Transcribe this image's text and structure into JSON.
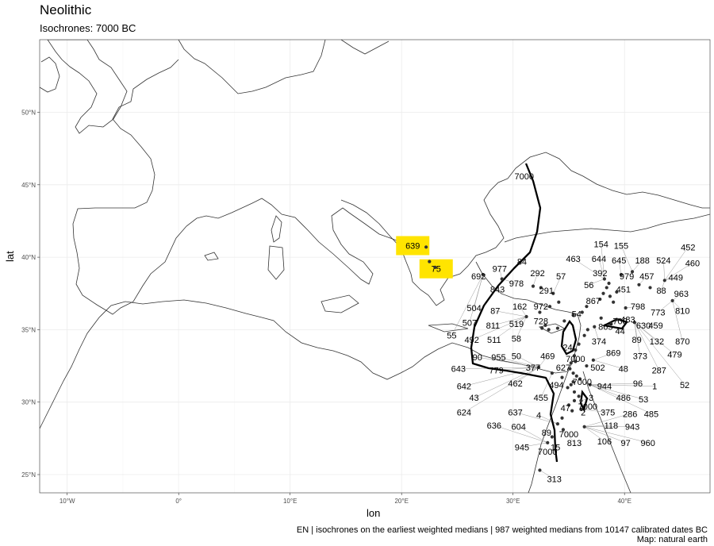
{
  "title": "Neolithic",
  "subtitle": "Isochrones: 7000 BC",
  "axes": {
    "xlabel": "lon",
    "ylabel": "lat",
    "x_ticks": [
      "10°W",
      "0°",
      "10°E",
      "20°E",
      "30°E",
      "40°E"
    ],
    "y_ticks": [
      "25°N",
      "30°N",
      "35°N",
      "40°N",
      "45°N",
      "50°N"
    ]
  },
  "caption": {
    "line1": "EN | isochrones on the earliest weighted medians | 987 weighted medians from 10147 calibrated dates BC",
    "line2": "Map: natural earth"
  },
  "colors": {
    "background": "#ffffff",
    "grid": "#ebebeb",
    "coast": "#333333",
    "isochrone": "#000000",
    "highlight": "#ffe400",
    "point": "#333333"
  },
  "chart_data": {
    "type": "scatter",
    "xlim": [
      -12,
      48
    ],
    "ylim": [
      23.5,
      55
    ],
    "isochrone_label": "7000",
    "isochrone_labels": [
      {
        "text": "7000",
        "lon": 31.0,
        "lat": 45.6
      },
      {
        "text": "7000",
        "lon": 35.6,
        "lat": 33.0
      },
      {
        "text": "7000",
        "lon": 36.2,
        "lat": 31.4
      },
      {
        "text": "7000",
        "lon": 36.7,
        "lat": 29.7
      },
      {
        "text": "7000",
        "lon": 35.0,
        "lat": 27.8
      },
      {
        "text": "7000",
        "lon": 33.1,
        "lat": 26.6
      },
      {
        "text": "700",
        "lon": 39.6,
        "lat": 35.6
      }
    ],
    "highlighted_labels": [
      {
        "text": "639",
        "lon": 21.0,
        "lat": 40.8
      },
      {
        "text": "75",
        "lon": 23.1,
        "lat": 39.2
      }
    ],
    "site_labels": [
      {
        "text": "84",
        "lon": 30.8,
        "lat": 39.7
      },
      {
        "text": "977",
        "lon": 28.8,
        "lat": 39.2
      },
      {
        "text": "692",
        "lon": 26.9,
        "lat": 38.7
      },
      {
        "text": "292",
        "lon": 32.2,
        "lat": 38.9
      },
      {
        "text": "57",
        "lon": 34.3,
        "lat": 38.7
      },
      {
        "text": "463",
        "lon": 35.4,
        "lat": 39.9
      },
      {
        "text": "154",
        "lon": 37.9,
        "lat": 40.9
      },
      {
        "text": "155",
        "lon": 39.7,
        "lat": 40.8
      },
      {
        "text": "644",
        "lon": 37.7,
        "lat": 39.9
      },
      {
        "text": "645",
        "lon": 39.5,
        "lat": 39.8
      },
      {
        "text": "188",
        "lon": 41.6,
        "lat": 39.8
      },
      {
        "text": "524",
        "lon": 43.5,
        "lat": 39.8
      },
      {
        "text": "452",
        "lon": 45.7,
        "lat": 40.7
      },
      {
        "text": "460",
        "lon": 46.1,
        "lat": 39.6
      },
      {
        "text": "392",
        "lon": 37.8,
        "lat": 38.9
      },
      {
        "text": "979",
        "lon": 40.2,
        "lat": 38.7
      },
      {
        "text": "457",
        "lon": 42.0,
        "lat": 38.7
      },
      {
        "text": "449",
        "lon": 44.6,
        "lat": 38.6
      },
      {
        "text": "978",
        "lon": 30.3,
        "lat": 38.2
      },
      {
        "text": "56",
        "lon": 36.8,
        "lat": 38.1
      },
      {
        "text": "451",
        "lon": 39.9,
        "lat": 37.8
      },
      {
        "text": "88",
        "lon": 43.3,
        "lat": 37.7
      },
      {
        "text": "963",
        "lon": 45.1,
        "lat": 37.5
      },
      {
        "text": "843",
        "lon": 28.6,
        "lat": 37.8
      },
      {
        "text": "291",
        "lon": 33.0,
        "lat": 37.7
      },
      {
        "text": "867",
        "lon": 37.2,
        "lat": 37.0
      },
      {
        "text": "798",
        "lon": 41.2,
        "lat": 36.6
      },
      {
        "text": "773",
        "lon": 43.0,
        "lat": 36.2
      },
      {
        "text": "810",
        "lon": 45.2,
        "lat": 36.3
      },
      {
        "text": "504",
        "lon": 26.5,
        "lat": 36.5
      },
      {
        "text": "87",
        "lon": 28.4,
        "lat": 36.3
      },
      {
        "text": "162",
        "lon": 30.6,
        "lat": 36.6
      },
      {
        "text": "972",
        "lon": 32.5,
        "lat": 36.6
      },
      {
        "text": "54",
        "lon": 35.7,
        "lat": 36.1
      },
      {
        "text": "483",
        "lon": 40.3,
        "lat": 35.7
      },
      {
        "text": "459",
        "lon": 42.8,
        "lat": 35.3
      },
      {
        "text": "507",
        "lon": 26.1,
        "lat": 35.5
      },
      {
        "text": "811",
        "lon": 28.2,
        "lat": 35.3
      },
      {
        "text": "519",
        "lon": 30.3,
        "lat": 35.4
      },
      {
        "text": "728",
        "lon": 32.5,
        "lat": 35.6
      },
      {
        "text": "865",
        "lon": 38.3,
        "lat": 35.2
      },
      {
        "text": "44",
        "lon": 39.6,
        "lat": 34.9
      },
      {
        "text": "630",
        "lon": 41.7,
        "lat": 35.3
      },
      {
        "text": "55",
        "lon": 24.5,
        "lat": 34.6
      },
      {
        "text": "492",
        "lon": 26.3,
        "lat": 34.3
      },
      {
        "text": "511",
        "lon": 28.3,
        "lat": 34.3
      },
      {
        "text": "58",
        "lon": 30.3,
        "lat": 34.4
      },
      {
        "text": "24",
        "lon": 34.9,
        "lat": 33.8
      },
      {
        "text": "374",
        "lon": 37.7,
        "lat": 34.2
      },
      {
        "text": "89",
        "lon": 41.1,
        "lat": 34.3
      },
      {
        "text": "132",
        "lon": 42.9,
        "lat": 34.2
      },
      {
        "text": "870",
        "lon": 45.2,
        "lat": 34.2
      },
      {
        "text": "90",
        "lon": 26.8,
        "lat": 33.1
      },
      {
        "text": "955",
        "lon": 28.7,
        "lat": 33.1
      },
      {
        "text": "50",
        "lon": 30.3,
        "lat": 33.2
      },
      {
        "text": "469",
        "lon": 33.1,
        "lat": 33.2
      },
      {
        "text": "869",
        "lon": 39.0,
        "lat": 33.4
      },
      {
        "text": "373",
        "lon": 41.4,
        "lat": 33.2
      },
      {
        "text": "479",
        "lon": 44.5,
        "lat": 33.3
      },
      {
        "text": "643",
        "lon": 25.1,
        "lat": 32.3
      },
      {
        "text": "779",
        "lon": 28.5,
        "lat": 32.2
      },
      {
        "text": "377",
        "lon": 31.8,
        "lat": 32.4
      },
      {
        "text": "627",
        "lon": 34.5,
        "lat": 32.4
      },
      {
        "text": "502",
        "lon": 37.6,
        "lat": 32.4
      },
      {
        "text": "48",
        "lon": 39.9,
        "lat": 32.3
      },
      {
        "text": "287",
        "lon": 43.1,
        "lat": 32.2
      },
      {
        "text": "642",
        "lon": 25.6,
        "lat": 31.1
      },
      {
        "text": "462",
        "lon": 30.2,
        "lat": 31.3
      },
      {
        "text": "494",
        "lon": 33.9,
        "lat": 31.2
      },
      {
        "text": "944",
        "lon": 38.2,
        "lat": 31.1
      },
      {
        "text": "96",
        "lon": 41.2,
        "lat": 31.3
      },
      {
        "text": "1",
        "lon": 42.7,
        "lat": 31.1
      },
      {
        "text": "52",
        "lon": 45.4,
        "lat": 31.2
      },
      {
        "text": "43",
        "lon": 26.5,
        "lat": 30.3
      },
      {
        "text": "455",
        "lon": 32.5,
        "lat": 30.3
      },
      {
        "text": "3",
        "lon": 37.0,
        "lat": 30.3
      },
      {
        "text": "486",
        "lon": 39.9,
        "lat": 30.3
      },
      {
        "text": "53",
        "lon": 41.7,
        "lat": 30.2
      },
      {
        "text": "624",
        "lon": 25.6,
        "lat": 29.3
      },
      {
        "text": "637",
        "lon": 30.2,
        "lat": 29.3
      },
      {
        "text": "4",
        "lon": 32.3,
        "lat": 29.1
      },
      {
        "text": "47",
        "lon": 34.7,
        "lat": 29.6
      },
      {
        "text": "2",
        "lon": 36.3,
        "lat": 29.3
      },
      {
        "text": "375",
        "lon": 38.5,
        "lat": 29.3
      },
      {
        "text": "286",
        "lon": 40.5,
        "lat": 29.2
      },
      {
        "text": "485",
        "lon": 42.4,
        "lat": 29.2
      },
      {
        "text": "636",
        "lon": 28.3,
        "lat": 28.4
      },
      {
        "text": "604",
        "lon": 30.5,
        "lat": 28.3
      },
      {
        "text": "118",
        "lon": 38.8,
        "lat": 28.4
      },
      {
        "text": "943",
        "lon": 40.7,
        "lat": 28.3
      },
      {
        "text": "89",
        "lon": 33.0,
        "lat": 27.9
      },
      {
        "text": "106",
        "lon": 38.2,
        "lat": 27.3
      },
      {
        "text": "97",
        "lon": 40.1,
        "lat": 27.2
      },
      {
        "text": "960",
        "lon": 42.1,
        "lat": 27.2
      },
      {
        "text": "945",
        "lon": 30.8,
        "lat": 26.9
      },
      {
        "text": "813",
        "lon": 35.5,
        "lat": 27.2
      },
      {
        "text": "15",
        "lon": 33.8,
        "lat": 26.9
      },
      {
        "text": "313",
        "lon": 33.7,
        "lat": 24.7
      }
    ],
    "points": [
      {
        "lon": 22.2,
        "lat": 40.7
      },
      {
        "lon": 22.5,
        "lat": 39.7
      },
      {
        "lon": 23.0,
        "lat": 39.3
      },
      {
        "lon": 27.3,
        "lat": 38.8
      },
      {
        "lon": 29.0,
        "lat": 38.5
      },
      {
        "lon": 31.8,
        "lat": 38.0
      },
      {
        "lon": 32.5,
        "lat": 37.9
      },
      {
        "lon": 33.6,
        "lat": 37.5
      },
      {
        "lon": 34.1,
        "lat": 36.9
      },
      {
        "lon": 33.3,
        "lat": 36.6
      },
      {
        "lon": 32.4,
        "lat": 36.2
      },
      {
        "lon": 31.2,
        "lat": 35.9
      },
      {
        "lon": 32.9,
        "lat": 35.3
      },
      {
        "lon": 32.6,
        "lat": 35.1
      },
      {
        "lon": 33.2,
        "lat": 35.0
      },
      {
        "lon": 34.0,
        "lat": 35.1
      },
      {
        "lon": 34.6,
        "lat": 35.6
      },
      {
        "lon": 35.4,
        "lat": 36.0
      },
      {
        "lon": 36.2,
        "lat": 36.2
      },
      {
        "lon": 36.6,
        "lat": 36.6
      },
      {
        "lon": 37.8,
        "lat": 37.1
      },
      {
        "lon": 38.1,
        "lat": 37.5
      },
      {
        "lon": 38.4,
        "lat": 37.9
      },
      {
        "lon": 38.7,
        "lat": 37.3
      },
      {
        "lon": 39.0,
        "lat": 36.9
      },
      {
        "lon": 39.3,
        "lat": 37.6
      },
      {
        "lon": 38.6,
        "lat": 38.2
      },
      {
        "lon": 38.2,
        "lat": 38.5
      },
      {
        "lon": 39.7,
        "lat": 38.8
      },
      {
        "lon": 40.7,
        "lat": 39.0
      },
      {
        "lon": 41.3,
        "lat": 38.1
      },
      {
        "lon": 42.3,
        "lat": 37.9
      },
      {
        "lon": 43.6,
        "lat": 38.4
      },
      {
        "lon": 44.3,
        "lat": 37.0
      },
      {
        "lon": 40.1,
        "lat": 36.5
      },
      {
        "lon": 40.9,
        "lat": 35.5
      },
      {
        "lon": 39.3,
        "lat": 35.7
      },
      {
        "lon": 38.8,
        "lat": 35.4
      },
      {
        "lon": 37.9,
        "lat": 35.8
      },
      {
        "lon": 37.3,
        "lat": 35.2
      },
      {
        "lon": 36.7,
        "lat": 35.0
      },
      {
        "lon": 36.4,
        "lat": 34.6
      },
      {
        "lon": 35.9,
        "lat": 34.0
      },
      {
        "lon": 35.6,
        "lat": 33.6
      },
      {
        "lon": 35.5,
        "lat": 33.2
      },
      {
        "lon": 35.6,
        "lat": 32.8
      },
      {
        "lon": 35.2,
        "lat": 32.7
      },
      {
        "lon": 35.1,
        "lat": 32.3
      },
      {
        "lon": 35.4,
        "lat": 32.0
      },
      {
        "lon": 35.7,
        "lat": 31.8
      },
      {
        "lon": 36.0,
        "lat": 31.6
      },
      {
        "lon": 35.4,
        "lat": 31.4
      },
      {
        "lon": 35.2,
        "lat": 31.2
      },
      {
        "lon": 34.9,
        "lat": 31.0
      },
      {
        "lon": 35.5,
        "lat": 30.7
      },
      {
        "lon": 35.9,
        "lat": 30.4
      },
      {
        "lon": 36.1,
        "lat": 30.1
      },
      {
        "lon": 35.5,
        "lat": 30.1
      },
      {
        "lon": 35.0,
        "lat": 29.8
      },
      {
        "lon": 35.3,
        "lat": 29.4
      },
      {
        "lon": 34.4,
        "lat": 28.9
      },
      {
        "lon": 34.0,
        "lat": 28.5
      },
      {
        "lon": 34.5,
        "lat": 28.1
      },
      {
        "lon": 33.5,
        "lat": 27.6
      },
      {
        "lon": 33.1,
        "lat": 27.2
      },
      {
        "lon": 32.4,
        "lat": 25.3
      },
      {
        "lon": 32.3,
        "lat": 32.4
      },
      {
        "lon": 33.5,
        "lat": 32.0
      },
      {
        "lon": 34.4,
        "lat": 31.7
      },
      {
        "lon": 36.6,
        "lat": 32.5
      },
      {
        "lon": 37.2,
        "lat": 32.9
      },
      {
        "lon": 36.9,
        "lat": 31.2
      },
      {
        "lon": 36.1,
        "lat": 29.5
      },
      {
        "lon": 36.4,
        "lat": 28.3
      }
    ]
  }
}
